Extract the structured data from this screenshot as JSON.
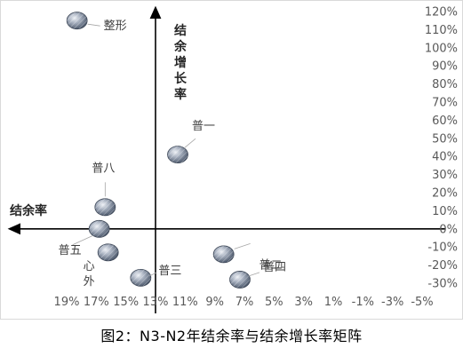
{
  "caption": "图2：N3-N2年结余率与结余增长率矩阵",
  "chart_data": {
    "type": "scatter",
    "title": "",
    "xlabel": "结余率",
    "ylabel": "结余增长率",
    "x_reversed": true,
    "xlim": [
      -0.05,
      0.19
    ],
    "ylim": [
      -0.3,
      1.2
    ],
    "x_ticks": [
      "19%",
      "17%",
      "15%",
      "13%",
      "11%",
      "9%",
      "7%",
      "5%",
      "3%",
      "1%",
      "-1%",
      "-3%",
      "-5%"
    ],
    "y_ticks": [
      "120%",
      "110%",
      "100%",
      "90%",
      "80%",
      "70%",
      "60%",
      "50%",
      "40%",
      "30%",
      "20%",
      "10%",
      "0%",
      "-10%",
      "-20%",
      "-30%"
    ],
    "grid": false,
    "points": [
      {
        "label": "整形",
        "x": 0.183,
        "y": 1.15
      },
      {
        "label": "普一",
        "x": 0.115,
        "y": 0.41
      },
      {
        "label": "普八",
        "x": 0.164,
        "y": 0.12
      },
      {
        "label": "普五心外",
        "x": 0.168,
        "y": 0.0
      },
      {
        "label": "",
        "x": 0.162,
        "y": -0.13
      },
      {
        "label": "普二",
        "x": 0.084,
        "y": -0.14
      },
      {
        "label": "普三",
        "x": 0.14,
        "y": -0.27
      },
      {
        "label": "普四",
        "x": 0.073,
        "y": -0.28
      }
    ],
    "marker_color": "#7f8ba0"
  }
}
